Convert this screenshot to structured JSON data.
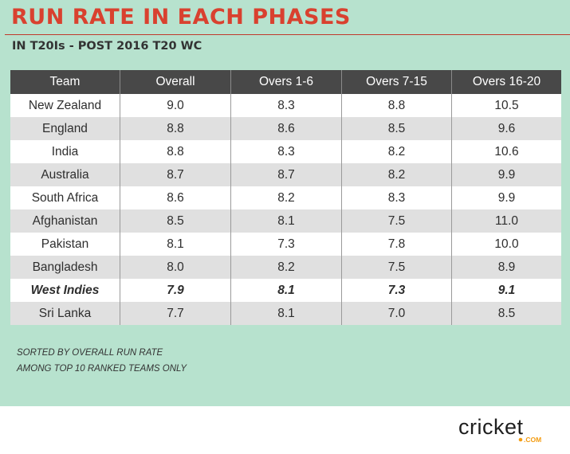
{
  "title": "RUN RATE IN EACH PHASES",
  "subtitle": "IN T20Is - POST 2016 T20 WC",
  "chart_data": {
    "type": "table",
    "columns": [
      "Team",
      "Overall",
      "Overs 1-6",
      "Overs 7-15",
      "Overs 16-20"
    ],
    "rows": [
      [
        "New Zealand",
        "9.0",
        "8.3",
        "8.8",
        "10.5"
      ],
      [
        "England",
        "8.8",
        "8.6",
        "8.5",
        "9.6"
      ],
      [
        "India",
        "8.8",
        "8.3",
        "8.2",
        "10.6"
      ],
      [
        "Australia",
        "8.7",
        "8.7",
        "8.2",
        "9.9"
      ],
      [
        "South Africa",
        "8.6",
        "8.2",
        "8.3",
        "9.9"
      ],
      [
        "Afghanistan",
        "8.5",
        "8.1",
        "7.5",
        "11.0"
      ],
      [
        "Pakistan",
        "8.1",
        "7.3",
        "7.8",
        "10.0"
      ],
      [
        "Bangladesh",
        "8.0",
        "8.2",
        "7.5",
        "8.9"
      ],
      [
        "West Indies",
        "7.9",
        "8.1",
        "7.3",
        "9.1"
      ],
      [
        "Sri Lanka",
        "7.7",
        "8.1",
        "7.0",
        "8.5"
      ]
    ],
    "highlighted_row": "West Indies"
  },
  "notes": [
    "SORTED BY OVERALL RUN RATE",
    "AMONG TOP 10 RANKED TEAMS ONLY"
  ],
  "logo": {
    "word": "cricket",
    "suffix": ".COM"
  },
  "colors": {
    "background": "#b7e2ce",
    "title": "#d9412f",
    "header": "#484848",
    "row_alt": "#e0e0e0",
    "logo_dot": "#f39c12"
  }
}
